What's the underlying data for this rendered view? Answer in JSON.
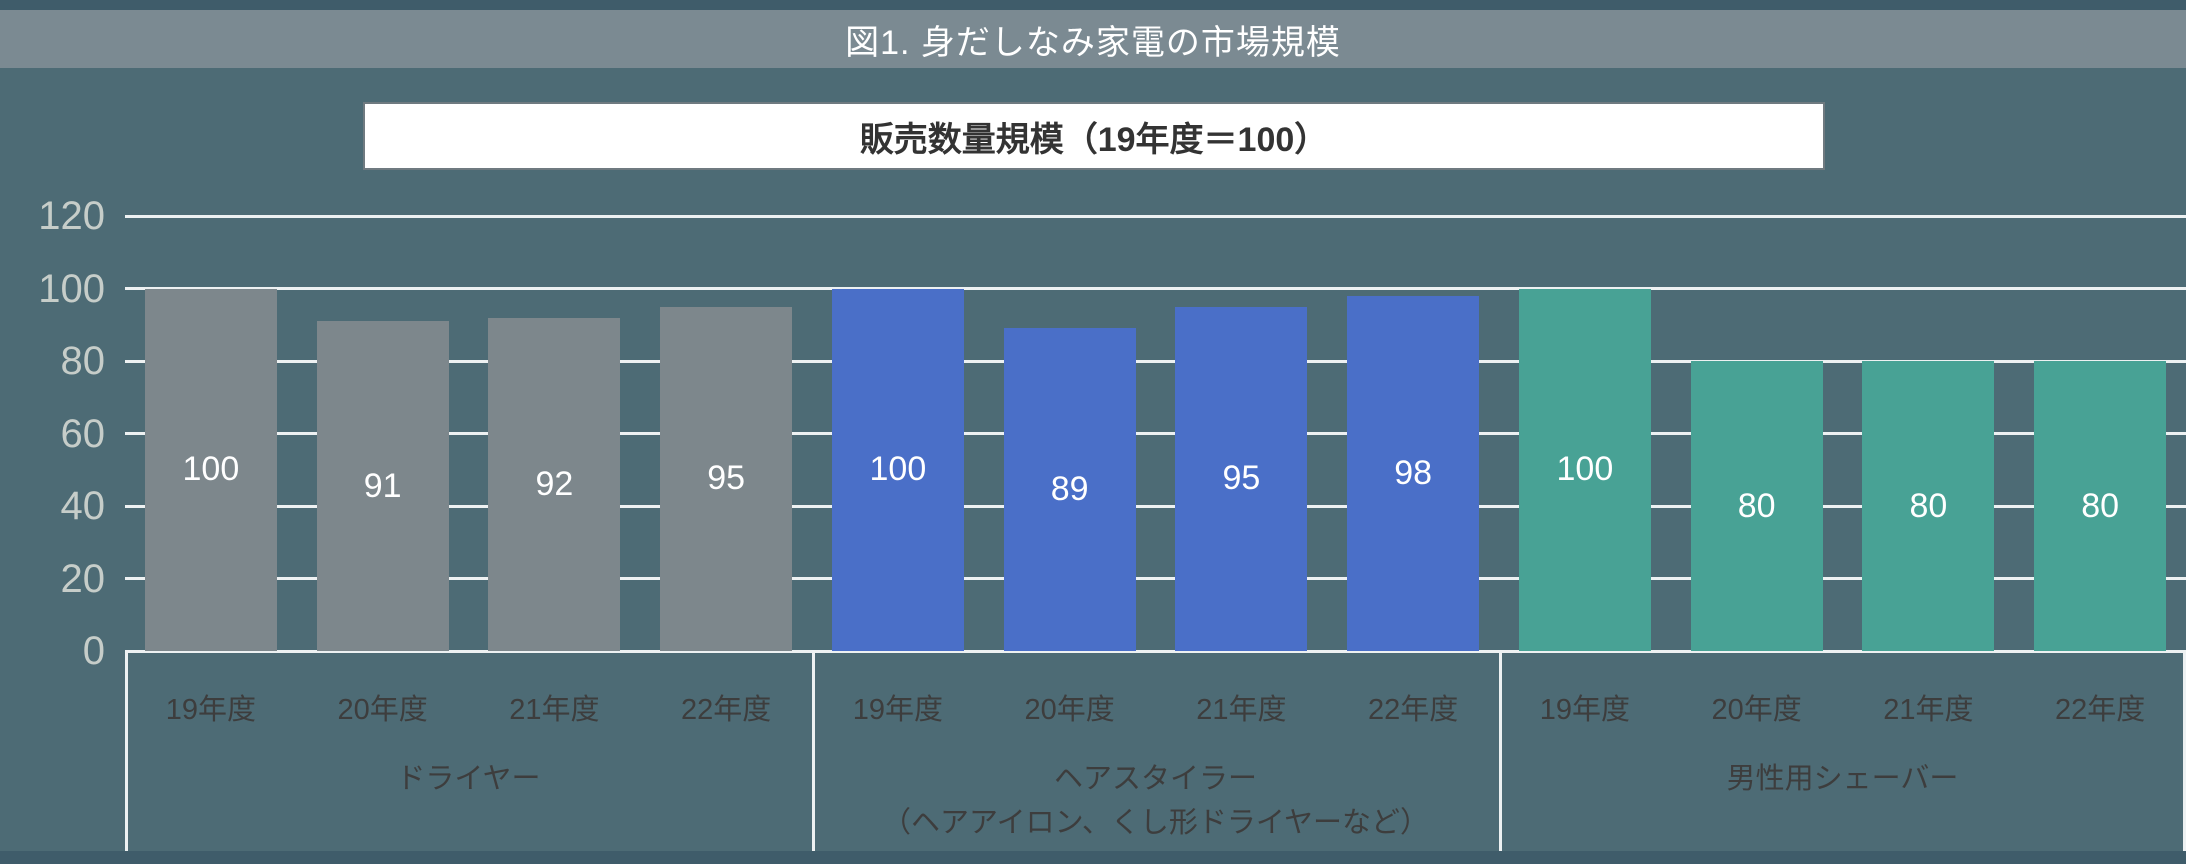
{
  "page": {
    "title": "図1. 身だしなみ家電の市場規模",
    "subtitle": "販売数量規模（19年度＝100）"
  },
  "chart_data": {
    "type": "bar",
    "title": "図1. 身だしなみ家電の市場規模",
    "subtitle": "販売数量規模（19年度＝100）",
    "ylabel": "",
    "xlabel": "",
    "ylim": [
      0,
      120
    ],
    "yticks": [
      0,
      20,
      40,
      60,
      80,
      100,
      120
    ],
    "grid": true,
    "legend": "none",
    "categories": [
      "19年度",
      "20年度",
      "21年度",
      "22年度"
    ],
    "groups": [
      {
        "name": "ドライヤー",
        "name_line2": "",
        "color": "#7d878c",
        "values": [
          100,
          91,
          92,
          95
        ]
      },
      {
        "name": "ヘアスタイラー",
        "name_line2": "（ヘアアイロン、くし形ドライヤーなど）",
        "color": "#4a6fc8",
        "values": [
          100,
          89,
          95,
          98
        ]
      },
      {
        "name": "男性用シェーバー",
        "name_line2": "",
        "color": "#48a295",
        "values": [
          100,
          80,
          80,
          80
        ]
      }
    ],
    "colors": {
      "background": "#4d6b75",
      "title_bar": "#7b8a92",
      "gridline": "#edf1f2",
      "bar_value_label": "#ffffff",
      "y_tick_label": "#c6cdc9",
      "x_tick_label": "#3d3d3d",
      "subtitle_background": "#ffffff",
      "subtitle_text": "#333333"
    }
  }
}
